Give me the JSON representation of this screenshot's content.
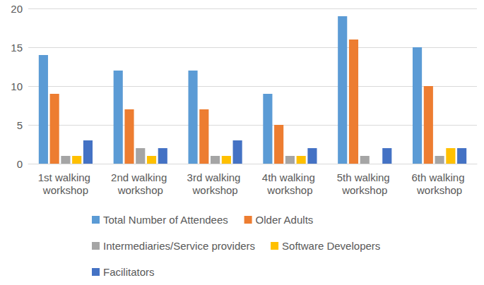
{
  "chart_data": {
    "type": "bar",
    "categories": [
      "1st walking workshop",
      "2nd walking workshop",
      "3rd walking workshop",
      "4th walking workshop",
      "5th walking workshop",
      "6th walking workshop"
    ],
    "series": [
      {
        "name": "Total Number of Attendees",
        "color": "#5b9bd5",
        "values": [
          14,
          12,
          12,
          9,
          19,
          15
        ]
      },
      {
        "name": "Older Adults",
        "color": "#ed7d31",
        "values": [
          9,
          7,
          7,
          5,
          16,
          10
        ]
      },
      {
        "name": "Intermediaries/Service providers",
        "color": "#a5a5a5",
        "values": [
          1,
          2,
          1,
          1,
          1,
          1
        ]
      },
      {
        "name": "Software Developers",
        "color": "#ffc000",
        "values": [
          1,
          1,
          1,
          1,
          0,
          2
        ]
      },
      {
        "name": "Facilitators",
        "color": "#4472c4",
        "values": [
          3,
          2,
          3,
          2,
          2,
          2
        ]
      }
    ],
    "ylim": [
      0,
      20
    ],
    "yticks": [
      0,
      5,
      10,
      15,
      20
    ],
    "grid": true,
    "legend": "bottom"
  }
}
